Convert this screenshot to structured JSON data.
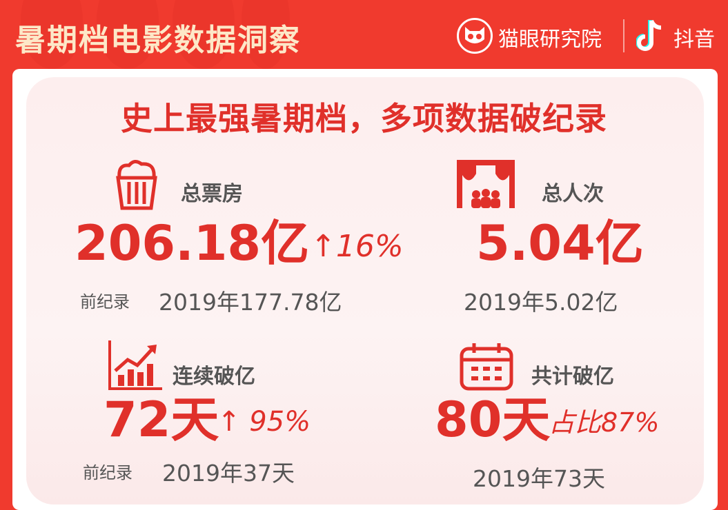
{
  "header": {
    "title": "暑期档电影数据洞察",
    "brand_maoyan": "猫眼研究院",
    "brand_douyin": "抖音"
  },
  "subtitle": "史上最强暑期档，多项数据破纪录",
  "colors": {
    "background": "#f03a2e",
    "accent": "#e0302a",
    "text": "#555555"
  },
  "stats": [
    {
      "icon": "popcorn-icon",
      "label": "总票房",
      "value": "206.18亿",
      "change": "↑16%",
      "prev_label": "前纪录",
      "prev_value": "2019年177.78亿"
    },
    {
      "icon": "theater-icon",
      "label": "总人次",
      "value": "5.04亿",
      "prev_value": "2019年5.02亿"
    },
    {
      "icon": "growth-chart-icon",
      "label": "连续破亿",
      "value": "72天",
      "change": "↑ 95%",
      "prev_label": "前纪录",
      "prev_value": "2019年37天"
    },
    {
      "icon": "calendar-icon",
      "label": "共计破亿",
      "value": "80天",
      "change": "占比87%",
      "prev_value": "2019年73天"
    }
  ]
}
